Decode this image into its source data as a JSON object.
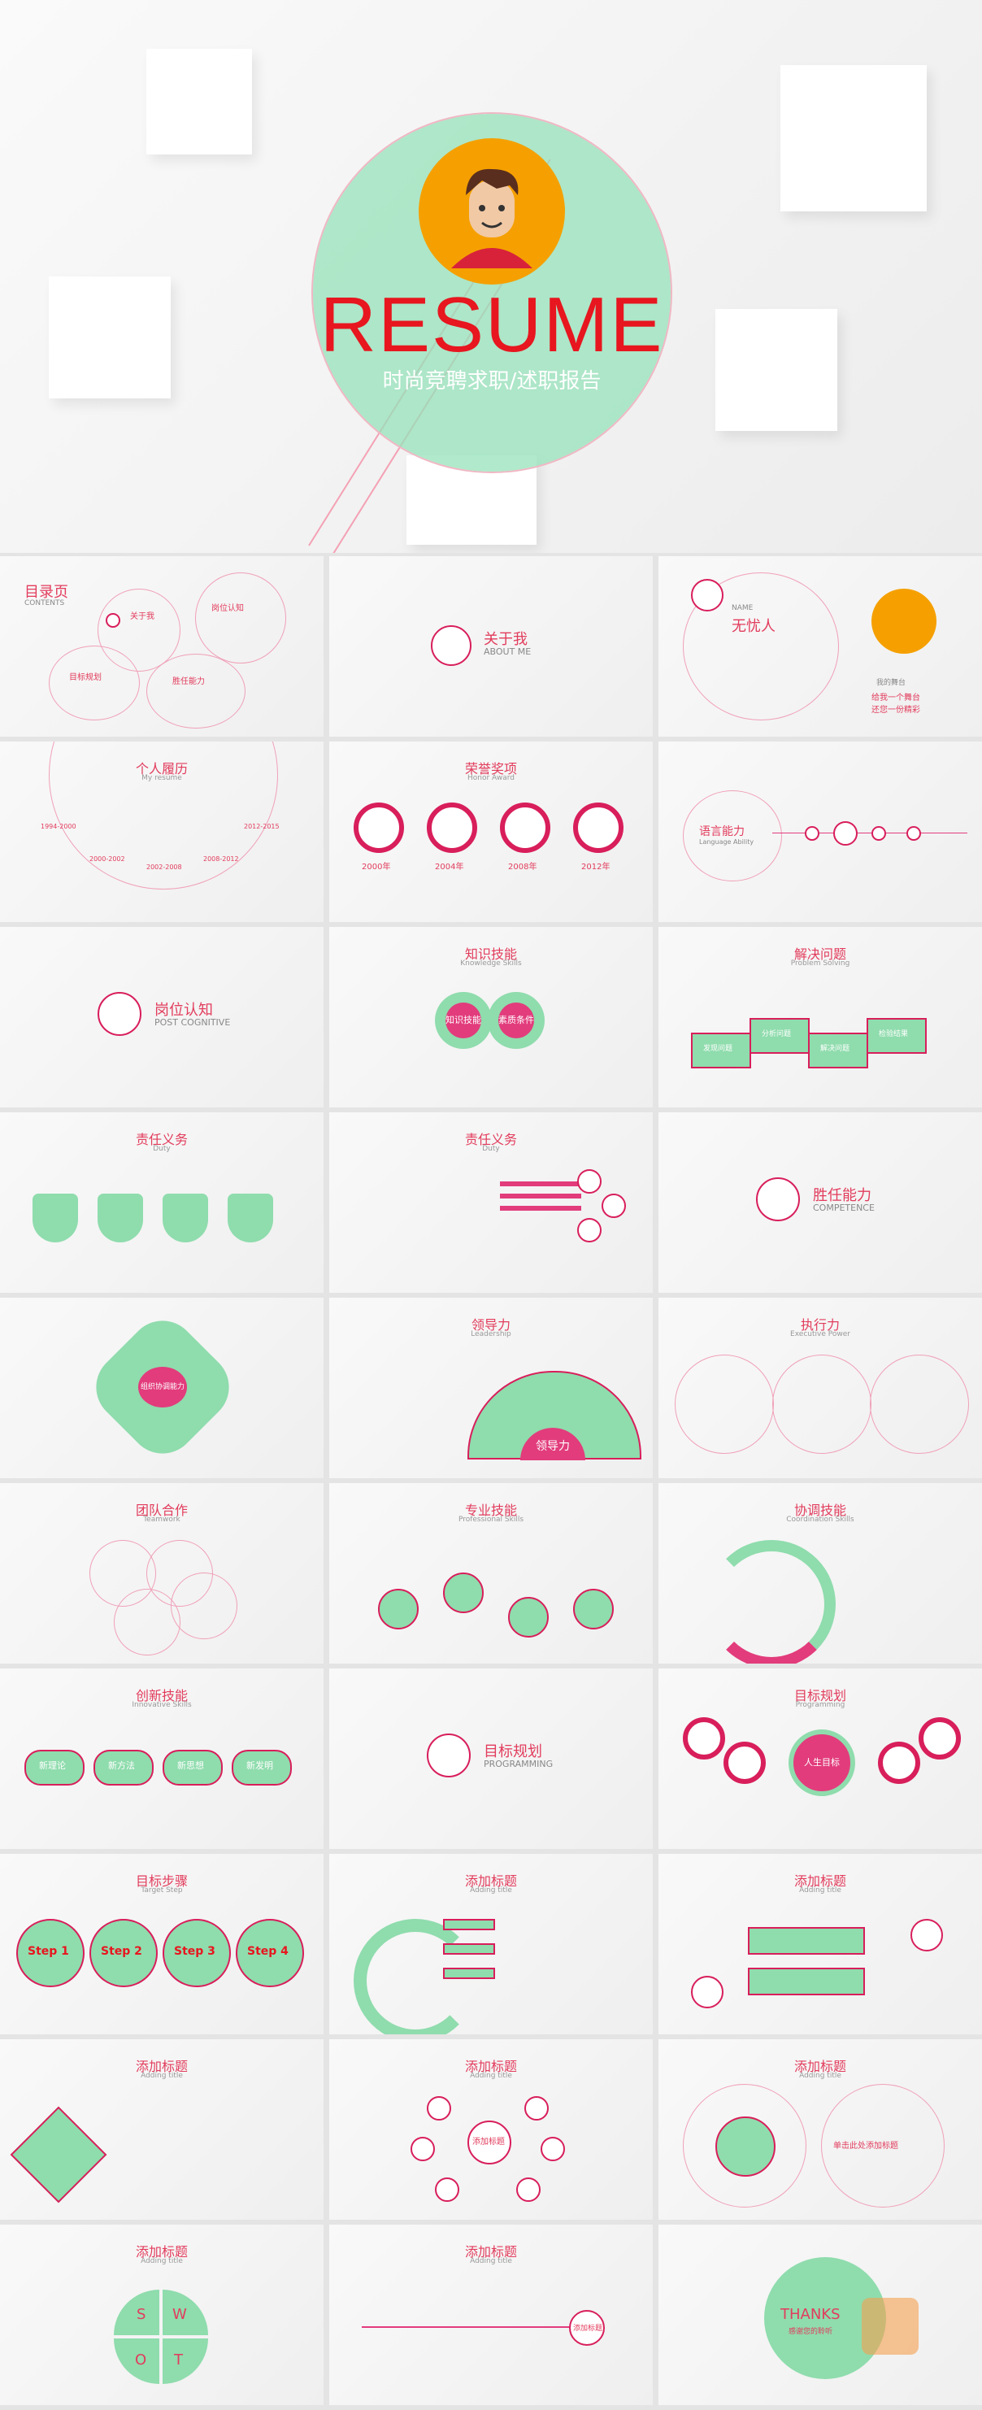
{
  "cover": {
    "title": "RESUME",
    "subtitle": "时尚竞聘求职/述职报告"
  },
  "slides": {
    "contents": {
      "title": "目录页",
      "sub": "CONTENTS",
      "i1": "关于我",
      "i1s": "ABOUT ME",
      "i2": "岗位认知",
      "i2s": "POST COGNITIVE",
      "i3": "目标规划",
      "i3s": "PROGRAMMING",
      "i4": "胜任能力",
      "i4s": "COMPETENCE"
    },
    "aboutme": {
      "title": "关于我",
      "sub": "ABOUT ME"
    },
    "profile": {
      "name_label": "NAME",
      "name": "无忧人",
      "quote1": "我的舞台",
      "quote2": "给我一个舞台",
      "quote3": "还您一份精彩"
    },
    "resume": {
      "title": "个人履历",
      "sub": "My resume",
      "y1": "1994-2000",
      "y2": "2000-2002",
      "y3": "2002-2008",
      "y4": "2008-2012",
      "y5": "2012-2015"
    },
    "award": {
      "title": "荣誉奖项",
      "sub": "Honor Award",
      "a1": "2000年",
      "a2": "2004年",
      "a3": "2008年",
      "a4": "2012年"
    },
    "lang": {
      "title": "语言能力",
      "sub": "Language Ability"
    },
    "post": {
      "title": "岗位认知",
      "sub": "POST COGNITIVE"
    },
    "knowledge": {
      "title": "知识技能",
      "sub": "Knowledge Skills",
      "c1": "知识技能",
      "c2": "素质条件"
    },
    "solve": {
      "title": "解决问题",
      "sub": "Problem Solving",
      "p1": "发现问题",
      "p2": "分析问题",
      "p3": "解决问题",
      "p4": "检验结果"
    },
    "duty1": {
      "title": "责任义务",
      "sub": "Duty"
    },
    "duty2": {
      "title": "责任义务",
      "sub": "Duty"
    },
    "competence": {
      "title": "胜任能力",
      "sub": "COMPETENCE"
    },
    "star": {
      "center": "组织协调能力"
    },
    "lead": {
      "title": "领导力",
      "sub": "Leadership",
      "c": "领导力"
    },
    "exec": {
      "title": "执行力",
      "sub": "Executive Power"
    },
    "team": {
      "title": "团队合作",
      "sub": "Teamwork"
    },
    "pro": {
      "title": "专业技能",
      "sub": "Professional Skills"
    },
    "coord": {
      "title": "协调技能",
      "sub": "Coordination Skills"
    },
    "innov": {
      "title": "创新技能",
      "sub": "Innovative Skills",
      "c1": "新理论",
      "c2": "新方法",
      "c3": "新思想",
      "c4": "新发明"
    },
    "programming": {
      "title": "目标规划",
      "sub": "PROGRAMMING"
    },
    "target": {
      "title": "目标规划",
      "sub": "Programming",
      "center": "人生目标"
    },
    "steps": {
      "title": "目标步骤",
      "sub": "Target Step",
      "s1": "Step 1",
      "s2": "Step 2",
      "s3": "Step 3",
      "s4": "Step 4"
    },
    "add1": {
      "title": "添加标题",
      "sub": "Adding title"
    },
    "add2": {
      "title": "添加标题",
      "sub": "Adding title"
    },
    "add3": {
      "title": "添加标题",
      "sub": "Adding title"
    },
    "add4": {
      "title": "添加标题",
      "sub": "Adding title",
      "center": "添加标题"
    },
    "add5": {
      "title": "添加标题",
      "sub": "Adding title",
      "label": "单击此处添加标题"
    },
    "swot": {
      "title": "添加标题",
      "sub": "Adding title",
      "s": "S",
      "w": "W",
      "o": "O",
      "t": "T"
    },
    "add6": {
      "title": "添加标题",
      "sub": "Adding title",
      "center": "添加标题"
    },
    "thanks": {
      "title": "THANKS",
      "sub": "感谢您的聆听"
    }
  },
  "colors": {
    "accent": "#e23c5c",
    "green": "#8fdcad",
    "pink": "#d81e5b",
    "orange": "#f5a000"
  }
}
